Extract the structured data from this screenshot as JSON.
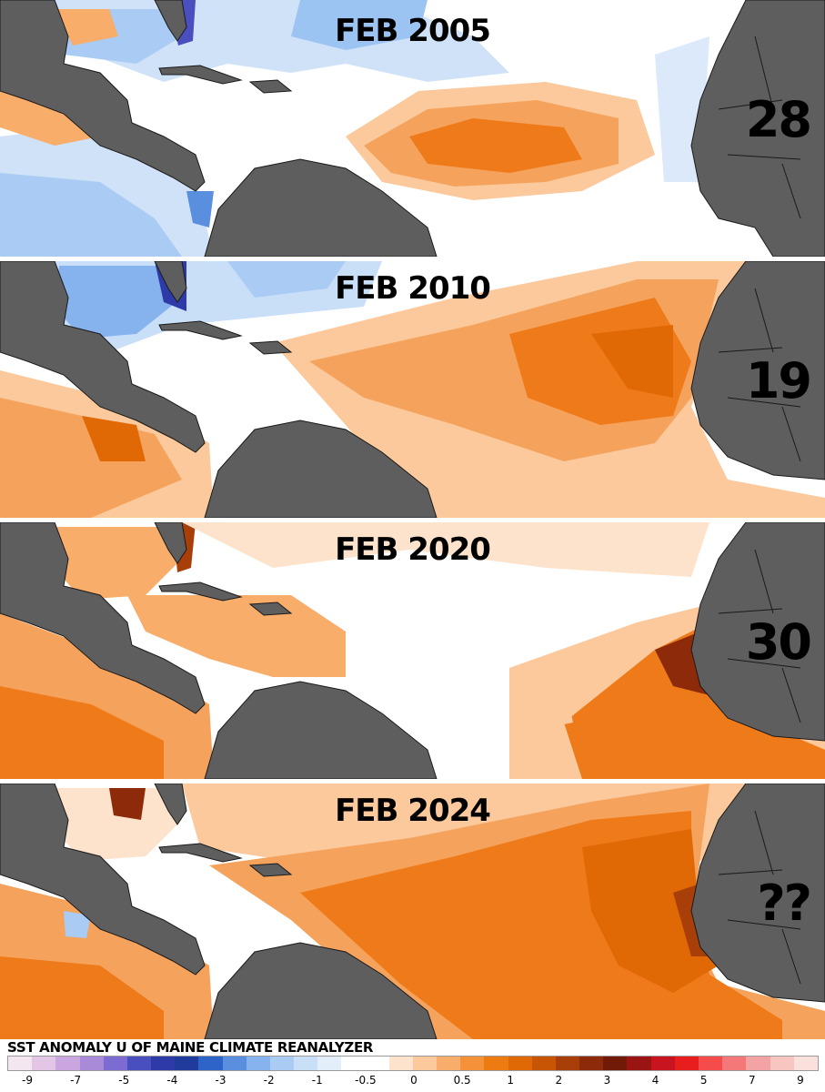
{
  "panels": [
    {
      "title": "FEB 2005",
      "count": "28"
    },
    {
      "title": "FEB 2010",
      "count": "19"
    },
    {
      "title": "FEB 2020",
      "count": "30"
    },
    {
      "title": "FEB 2024",
      "count": "??"
    }
  ],
  "legend": {
    "title": "SST ANOMALY U OF MAINE CLIMATE REANALYZER",
    "ticks": [
      "-9",
      "-7",
      "-5",
      "-4",
      "-3",
      "-2",
      "-1",
      "-0.5",
      "0",
      "0.5",
      "1",
      "2",
      "3",
      "4",
      "5",
      "7",
      "9"
    ],
    "colors": [
      "#f4e6f0",
      "#e3c6e6",
      "#c9a6e0",
      "#a98ad8",
      "#7c6bd0",
      "#4a4fc0",
      "#2d3aa8",
      "#1f3c9c",
      "#2e63c8",
      "#5a8fe0",
      "#86b2ee",
      "#a9cbf4",
      "#c9dff8",
      "#e3eefb",
      "#ffffff",
      "#ffffff",
      "#fde3cb",
      "#fbc99b",
      "#f8ad6a",
      "#f49139",
      "#ee7a12",
      "#e06805",
      "#c85504",
      "#a83e08",
      "#8c2a0a",
      "#721a08",
      "#9a1414",
      "#c8141e",
      "#e81e1e",
      "#f54b4b",
      "#f57878",
      "#f3a3a3",
      "#f7c6c0",
      "#fae1dc"
    ]
  },
  "colors": {
    "land": "#5e5e5e",
    "border": "#1a1a1a",
    "neutral_sea": "#ffffff",
    "cool": "#9cc4f2",
    "cool_strong": "#4a7fd6",
    "cool_extreme": "#2a2f9e",
    "warm_light": "#fbd3ad",
    "warm": "#f5a35c",
    "warm_strong": "#ee7a1a",
    "warm_extreme": "#b23b0c"
  }
}
